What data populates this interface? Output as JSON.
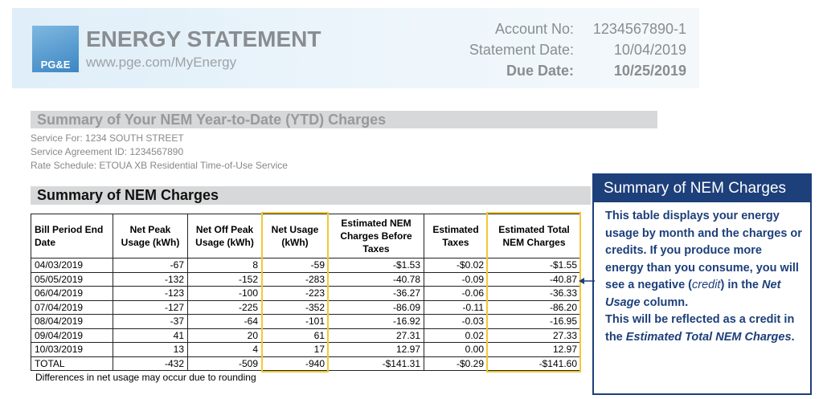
{
  "header": {
    "logo": "PG&E",
    "title": "ENERGY STATEMENT",
    "url": "www.pge.com/MyEnergy",
    "account_label": "Account No:",
    "account_value": "1234567890-1",
    "statement_date_label": "Statement Date:",
    "statement_date_value": "10/04/2019",
    "due_date_label": "Due Date:",
    "due_date_value": "10/25/2019"
  },
  "ytd": {
    "title": "Summary of Your NEM Year-to-Date (YTD) Charges",
    "lines": [
      "Service For:  1234 SOUTH STREET",
      "Service Agreement ID:  1234567890",
      "Rate Schedule:  ETOUA XB Residential Time-of-Use Service"
    ]
  },
  "summary": {
    "title": "Summary of NEM Charges",
    "footnote": "Differences in net usage may occur due to rounding"
  },
  "table": {
    "headers": [
      "Bill Period End Date",
      "Net Peak Usage (kWh)",
      "Net Off Peak Usage (kWh)",
      "Net Usage (kWh)",
      "Estimated NEM Charges Before Taxes",
      "Estimated Taxes",
      "Estimated Total NEM Charges"
    ],
    "rows": [
      [
        "04/03/2019",
        "-67",
        "8",
        "-59",
        "-$1.53",
        "-$0.02",
        "-$1.55"
      ],
      [
        "05/05/2019",
        "-132",
        "-152",
        "-283",
        "-40.78",
        "-0.09",
        "-40.87"
      ],
      [
        "06/04/2019",
        "-123",
        "-100",
        "-223",
        "-36.27",
        "-0.06",
        "-36.33"
      ],
      [
        "07/04/2019",
        "-127",
        "-225",
        "-352",
        "-86.09",
        "-0.11",
        "-86.20"
      ],
      [
        "08/04/2019",
        "-37",
        "-64",
        "-101",
        "-16.92",
        "-0.03",
        "-16.95"
      ],
      [
        "09/04/2019",
        "41",
        "20",
        "61",
        "27.31",
        "0.02",
        "27.33"
      ],
      [
        "10/03/2019",
        "13",
        "4",
        "17",
        "12.97",
        "0.00",
        "12.97"
      ],
      [
        "TOTAL",
        "-432",
        "-509",
        "-940",
        "-$141.31",
        "-$0.29",
        "-$141.60"
      ]
    ]
  },
  "callout": {
    "title": "Summary of NEM Charges",
    "body": [
      "This table displays your energy usage by month and the charges or credits. If you produce more energy than you consume, you will see a negative (",
      "credit",
      ") in the ",
      "Net Usage",
      " column.",
      "This will be reflected as a credit in the ",
      "Estimated Total NEM Charges",
      "."
    ]
  }
}
